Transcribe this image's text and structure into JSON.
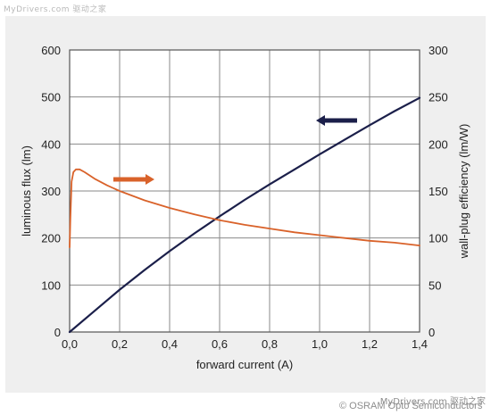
{
  "watermark": {
    "top": "MyDrivers.com 驱动之家",
    "bottom": "MyDrivers.com 驱动之家"
  },
  "credit": "© OSRAM Opto Semiconductors",
  "colors": {
    "background_panel": "#efefef",
    "plot_area": "#ffffff",
    "grid": "#8a8a8a",
    "flux_series": "#1b1f4a",
    "efficiency_series": "#d9622a"
  },
  "chart_data": {
    "type": "line",
    "title": "",
    "xlabel": "forward current (A)",
    "ylabel_left": "luminous flux (lm)",
    "ylabel_right": "wall-plug efficiency (lm/W)",
    "xlim": [
      0,
      1.4
    ],
    "ylim_left": [
      0,
      600
    ],
    "ylim_right": [
      0,
      300
    ],
    "x_ticks": [
      "0,0",
      "0,2",
      "0,4",
      "0,6",
      "0,8",
      "1,0",
      "1,2",
      "1,4"
    ],
    "y_ticks_left": [
      "0",
      "100",
      "200",
      "300",
      "400",
      "500",
      "600"
    ],
    "y_ticks_right": [
      "0",
      "50",
      "100",
      "150",
      "200",
      "250",
      "300"
    ],
    "grid": true,
    "series": [
      {
        "id": "flux",
        "axis": "left",
        "indicator": "arrow pointing left",
        "x": [
          0,
          0.1,
          0.2,
          0.3,
          0.4,
          0.5,
          0.6,
          0.7,
          0.8,
          0.9,
          1.0,
          1.1,
          1.2,
          1.3,
          1.4
        ],
        "y": [
          0,
          45,
          90,
          132,
          172,
          210,
          246,
          281,
          314,
          346,
          378,
          409,
          440,
          470,
          498
        ]
      },
      {
        "id": "efficiency",
        "axis": "right",
        "indicator": "arrow pointing right",
        "x": [
          0,
          0.003,
          0.008,
          0.015,
          0.025,
          0.04,
          0.06,
          0.1,
          0.15,
          0.2,
          0.3,
          0.4,
          0.5,
          0.6,
          0.7,
          0.8,
          0.9,
          1.0,
          1.1,
          1.2,
          1.3,
          1.4
        ],
        "y": [
          90,
          120,
          160,
          170,
          173,
          173,
          170,
          163,
          156,
          150,
          140,
          132,
          125,
          119,
          114,
          110,
          106,
          103,
          100,
          97,
          95,
          92
        ]
      }
    ]
  }
}
